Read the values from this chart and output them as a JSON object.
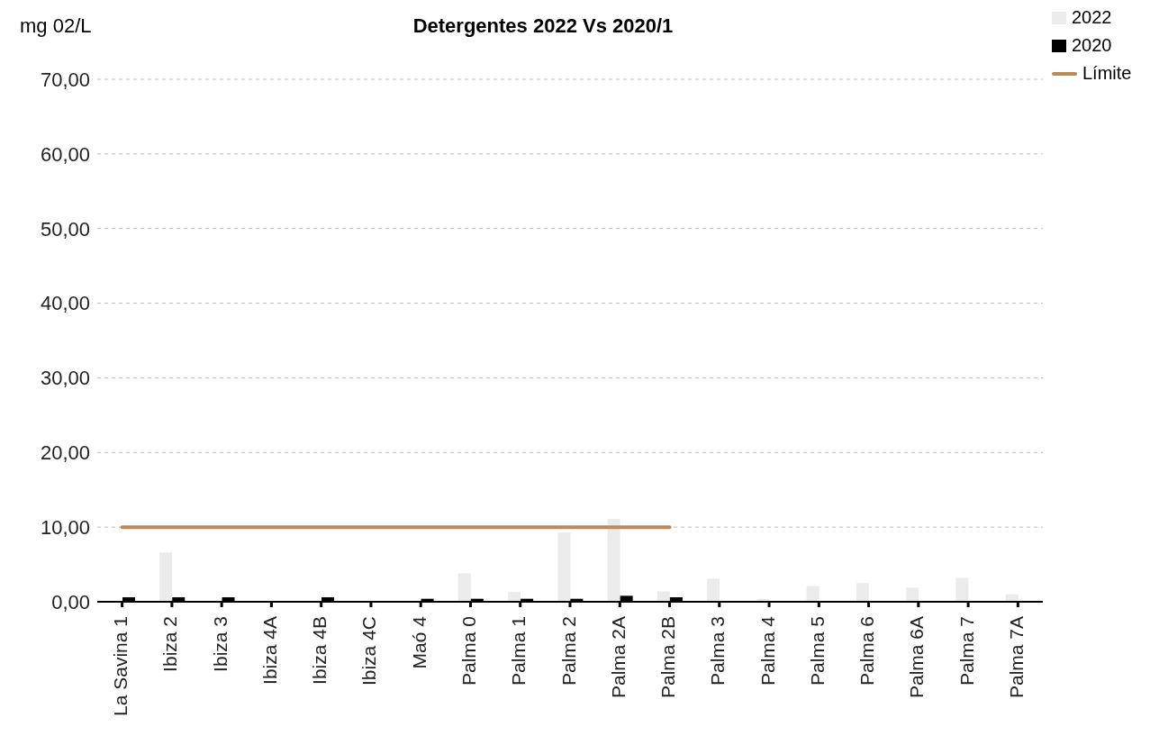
{
  "chart_data": {
    "type": "bar",
    "title": "Detergentes 2022 Vs 2020/1",
    "ylabel": "mg 02/L",
    "categories": [
      "La Savina 1",
      "Ibiza 2",
      "Ibiza 3",
      "Ibiza 4A",
      "Ibiza 4B",
      "Ibiza 4C",
      "Maó 4",
      "Palma 0",
      "Palma 1",
      "Palma 2",
      "Palma 2A",
      "Palma 2B",
      "Palma 3",
      "Palma 4",
      "Palma 5",
      "Palma 6",
      "Palma 6A",
      "Palma 7",
      "Palma 7A"
    ],
    "series": [
      {
        "name": "2022",
        "color": "#ebebeb",
        "values": [
          null,
          6.6,
          null,
          null,
          null,
          null,
          null,
          3.8,
          1.3,
          9.3,
          11.1,
          1.4,
          3.1,
          0.4,
          2.1,
          2.5,
          1.9,
          3.2,
          1.0
        ]
      },
      {
        "name": "2020",
        "color": "#000000",
        "values": [
          0.6,
          0.6,
          0.6,
          null,
          0.6,
          null,
          0.4,
          0.4,
          0.4,
          0.4,
          0.8,
          0.6,
          null,
          null,
          null,
          null,
          null,
          null,
          null
        ]
      },
      {
        "name": "Límite",
        "type": "line",
        "color": "#bc8a5a",
        "values": [
          10,
          10,
          10,
          10,
          10,
          10,
          10,
          10,
          10,
          10,
          10,
          10,
          null,
          null,
          null,
          null,
          null,
          null,
          null
        ]
      }
    ],
    "ylim": [
      0,
      70
    ],
    "yticks": [
      {
        "value": 0,
        "label": "0,00"
      },
      {
        "value": 10,
        "label": "10,00"
      },
      {
        "value": 20,
        "label": "20,00"
      },
      {
        "value": 30,
        "label": "30,00"
      },
      {
        "value": 40,
        "label": "40,00"
      },
      {
        "value": 50,
        "label": "50,00"
      },
      {
        "value": 60,
        "label": "60,00"
      },
      {
        "value": 70,
        "label": "70,00"
      }
    ],
    "grid": "y",
    "legend": "top right",
    "marker": "none",
    "line_style": "solid"
  }
}
